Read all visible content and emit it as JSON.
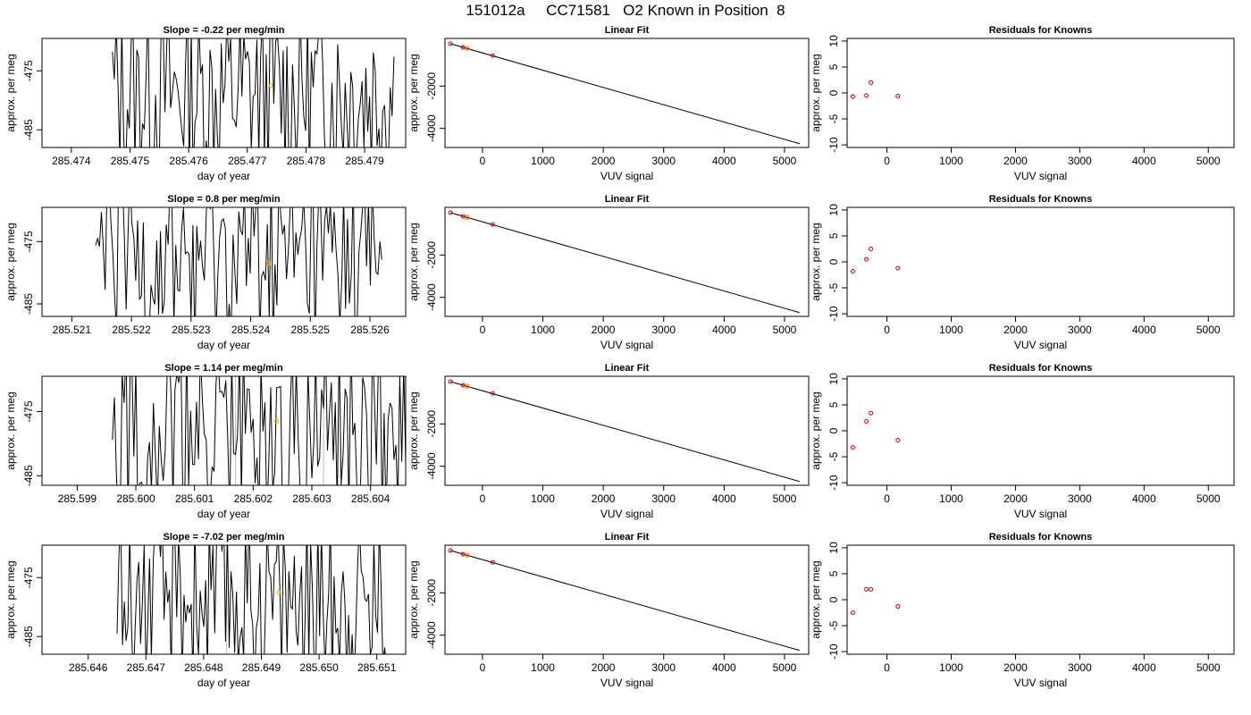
{
  "page": {
    "title": "151012a     CC71581   O2 Known in Position  8",
    "colors": {
      "trace": "#000000",
      "known_point": "#ffa500",
      "residual_point": "#cc0000",
      "fit_point": "#cc0000",
      "marker_line": "#bbbbbb"
    }
  },
  "chart_data": [
    {
      "type": "line",
      "title": "Slope =  -0.22  per meg/min",
      "xlabel": "day of year",
      "ylabel": "approx. per meg",
      "xlim": [
        285.4735,
        285.4797
      ],
      "ylim": [
        -488,
        -469.5
      ],
      "xticks": [
        285.474,
        285.475,
        285.476,
        285.477,
        285.478,
        285.479
      ],
      "xtick_labels": [
        "285.474",
        "285.475",
        "285.476",
        "285.477",
        "285.478",
        "285.479"
      ],
      "yticks": [
        -475,
        -485
      ],
      "ytick_labels": [
        "-475",
        "-485"
      ],
      "trace_start": 285.4747,
      "trace_end": 285.4795,
      "known_point": {
        "x": 285.4774,
        "y": -477.5
      },
      "markers": []
    },
    {
      "type": "line",
      "title": "Linear Fit",
      "xlabel": "VUV signal",
      "ylabel": "approx. per meg",
      "xlim": [
        -620,
        5400
      ],
      "ylim": [
        -4900,
        250
      ],
      "xticks": [
        0,
        1000,
        2000,
        3000,
        4000,
        5000
      ],
      "xtick_labels": [
        "0",
        "1000",
        "2000",
        "3000",
        "4000",
        "5000"
      ],
      "yticks": [
        -2000,
        -4000
      ],
      "ytick_labels": [
        "-2000",
        "-4000"
      ],
      "fit_line": {
        "x": [
          -530,
          5250
        ],
        "y": [
          0,
          -4720
        ]
      },
      "points": {
        "x": [
          -530,
          -320,
          -250,
          170
        ],
        "y": [
          0,
          -175,
          -225,
          -560
        ]
      },
      "known_point": {
        "x": -250,
        "y": -225
      }
    },
    {
      "type": "scatter",
      "title": "Residuals for Knowns",
      "xlabel": "VUV signal",
      "ylabel": "approx. per meg",
      "xlim": [
        -620,
        5400
      ],
      "ylim": [
        -10.5,
        10.5
      ],
      "xticks": [
        0,
        1000,
        2000,
        3000,
        4000,
        5000
      ],
      "xtick_labels": [
        "0",
        "1000",
        "2000",
        "3000",
        "4000",
        "5000"
      ],
      "yticks": [
        10,
        5,
        0,
        -5,
        -10
      ],
      "ytick_labels": [
        "10",
        "5",
        "0",
        "-5",
        "-10"
      ],
      "points": {
        "x": [
          -530,
          -320,
          -250,
          170
        ],
        "y": [
          -0.7,
          -0.5,
          2.0,
          -0.6
        ]
      }
    },
    {
      "type": "line",
      "title": "Slope =  0.8  per meg/min",
      "xlabel": "day of year",
      "ylabel": "approx. per meg",
      "xlim": [
        285.5205,
        285.5266
      ],
      "ylim": [
        -487,
        -469.5
      ],
      "xticks": [
        285.521,
        285.522,
        285.523,
        285.524,
        285.525,
        285.526
      ],
      "xtick_labels": [
        "285.521",
        "285.522",
        "285.523",
        "285.524",
        "285.525",
        "285.526"
      ],
      "yticks": [
        -475,
        -485
      ],
      "ytick_labels": [
        "-475",
        "-485"
      ],
      "trace_start": 285.5214,
      "trace_end": 285.5262,
      "known_point": {
        "x": 285.5243,
        "y": -478.5
      },
      "markers": []
    },
    {
      "type": "line",
      "title": "Linear Fit",
      "xlabel": "VUV signal",
      "ylabel": "approx. per meg",
      "xlim": [
        -620,
        5400
      ],
      "ylim": [
        -4900,
        250
      ],
      "xticks": [
        0,
        1000,
        2000,
        3000,
        4000,
        5000
      ],
      "xtick_labels": [
        "0",
        "1000",
        "2000",
        "3000",
        "4000",
        "5000"
      ],
      "yticks": [
        -2000,
        -4000
      ],
      "ytick_labels": [
        "-2000",
        "-4000"
      ],
      "fit_line": {
        "x": [
          -530,
          5250
        ],
        "y": [
          0,
          -4720
        ]
      },
      "points": {
        "x": [
          -530,
          -320,
          -250,
          170
        ],
        "y": [
          0,
          -175,
          -225,
          -560
        ]
      },
      "known_point": {
        "x": -250,
        "y": -225
      }
    },
    {
      "type": "scatter",
      "title": "Residuals for Knowns",
      "xlabel": "VUV signal",
      "ylabel": "approx. per meg",
      "xlim": [
        -620,
        5400
      ],
      "ylim": [
        -10.5,
        10.5
      ],
      "xticks": [
        0,
        1000,
        2000,
        3000,
        4000,
        5000
      ],
      "xtick_labels": [
        "0",
        "1000",
        "2000",
        "3000",
        "4000",
        "5000"
      ],
      "yticks": [
        10,
        5,
        0,
        -5,
        -10
      ],
      "ytick_labels": [
        "10",
        "5",
        "0",
        "-5",
        "-10"
      ],
      "points": {
        "x": [
          -530,
          -320,
          -250,
          170
        ],
        "y": [
          -1.8,
          0.5,
          2.5,
          -1.2
        ]
      }
    },
    {
      "type": "line",
      "title": "Slope =  1.14  per meg/min",
      "xlabel": "day of year",
      "ylabel": "approx. per meg",
      "xlim": [
        285.5984,
        285.6046
      ],
      "ylim": [
        -486.5,
        -469.5
      ],
      "xticks": [
        285.599,
        285.6,
        285.601,
        285.602,
        285.603,
        285.604
      ],
      "xtick_labels": [
        "285.599",
        "285.600",
        "285.601",
        "285.602",
        "285.603",
        "285.604"
      ],
      "yticks": [
        -475,
        -485
      ],
      "ytick_labels": [
        "-475",
        "-485"
      ],
      "trace_start": 285.5996,
      "trace_end": 285.6046,
      "known_point": {
        "x": 285.6024,
        "y": -476.5
      },
      "markers": [
        285.6017,
        285.6032
      ]
    },
    {
      "type": "line",
      "title": "Linear Fit",
      "xlabel": "VUV signal",
      "ylabel": "approx. per meg",
      "xlim": [
        -620,
        5400
      ],
      "ylim": [
        -4900,
        250
      ],
      "xticks": [
        0,
        1000,
        2000,
        3000,
        4000,
        5000
      ],
      "xtick_labels": [
        "0",
        "1000",
        "2000",
        "3000",
        "4000",
        "5000"
      ],
      "yticks": [
        -2000,
        -4000
      ],
      "ytick_labels": [
        "-2000",
        "-4000"
      ],
      "fit_line": {
        "x": [
          -530,
          5250
        ],
        "y": [
          0,
          -4720
        ]
      },
      "points": {
        "x": [
          -530,
          -320,
          -250,
          170
        ],
        "y": [
          0,
          -175,
          -225,
          -560
        ]
      },
      "known_point": {
        "x": -250,
        "y": -225
      }
    },
    {
      "type": "scatter",
      "title": "Residuals for Knowns",
      "xlabel": "VUV signal",
      "ylabel": "approx. per meg",
      "xlim": [
        -620,
        5400
      ],
      "ylim": [
        -10.5,
        10.5
      ],
      "xticks": [
        0,
        1000,
        2000,
        3000,
        4000,
        5000
      ],
      "xtick_labels": [
        "0",
        "1000",
        "2000",
        "3000",
        "4000",
        "5000"
      ],
      "yticks": [
        10,
        5,
        0,
        -5,
        -10
      ],
      "ytick_labels": [
        "10",
        "5",
        "0",
        "-5",
        "-10"
      ],
      "points": {
        "x": [
          -530,
          -320,
          -250,
          170
        ],
        "y": [
          -3.2,
          1.8,
          3.4,
          -1.8
        ]
      }
    },
    {
      "type": "line",
      "title": "Slope =  -7.02  per meg/min",
      "xlabel": "day of year",
      "ylabel": "approx. per meg",
      "xlim": [
        285.6452,
        285.6515
      ],
      "ylim": [
        -488,
        -469.5
      ],
      "xticks": [
        285.646,
        285.647,
        285.648,
        285.649,
        285.65,
        285.651
      ],
      "xtick_labels": [
        "285.646",
        "285.647",
        "285.648",
        "285.649",
        "285.650",
        "285.651"
      ],
      "yticks": [
        -475,
        -485
      ],
      "ytick_labels": [
        "-475",
        "-485"
      ],
      "trace_start": 285.6465,
      "trace_end": 285.6512,
      "known_point": {
        "x": 285.6493,
        "y": -477.5
      },
      "markers": [
        285.6484,
        285.6502
      ]
    },
    {
      "type": "line",
      "title": "Linear Fit",
      "xlabel": "VUV signal",
      "ylabel": "approx. per meg",
      "xlim": [
        -620,
        5400
      ],
      "ylim": [
        -4900,
        250
      ],
      "xticks": [
        0,
        1000,
        2000,
        3000,
        4000,
        5000
      ],
      "xtick_labels": [
        "0",
        "1000",
        "2000",
        "3000",
        "4000",
        "5000"
      ],
      "yticks": [
        -2000,
        -4000
      ],
      "ytick_labels": [
        "-2000",
        "-4000"
      ],
      "fit_line": {
        "x": [
          -530,
          5250
        ],
        "y": [
          0,
          -4720
        ]
      },
      "points": {
        "x": [
          -530,
          -320,
          -250,
          170
        ],
        "y": [
          0,
          -175,
          -225,
          -560
        ]
      },
      "known_point": {
        "x": -250,
        "y": -225
      }
    },
    {
      "type": "scatter",
      "title": "Residuals for Knowns",
      "xlabel": "VUV signal",
      "ylabel": "approx. per meg",
      "xlim": [
        -620,
        5400
      ],
      "ylim": [
        -10.5,
        10.5
      ],
      "xticks": [
        0,
        1000,
        2000,
        3000,
        4000,
        5000
      ],
      "xtick_labels": [
        "0",
        "1000",
        "2000",
        "3000",
        "4000",
        "5000"
      ],
      "yticks": [
        10,
        5,
        0,
        -5,
        -10
      ],
      "ytick_labels": [
        "10",
        "5",
        "0",
        "-5",
        "-10"
      ],
      "points": {
        "x": [
          -530,
          -320,
          -250,
          170
        ],
        "y": [
          -2.5,
          2.0,
          2.0,
          -1.3
        ]
      }
    }
  ]
}
